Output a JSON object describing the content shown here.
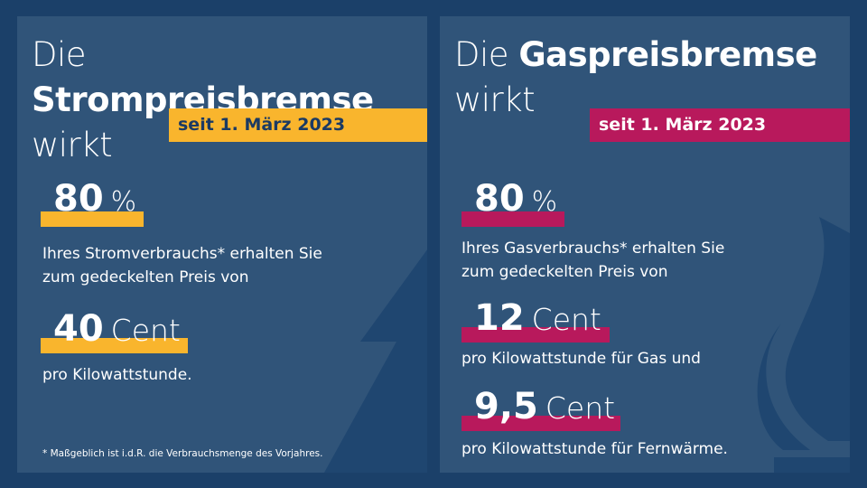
{
  "strom": {
    "title_prefix": "Die",
    "title_bold": "Strompreisbremse",
    "title_line2": "wirkt",
    "badge": "seit 1. März 2023",
    "share_value": "80",
    "share_unit": "%",
    "share_text_1": "Ihres Stromverbrauchs* erhalten Sie",
    "share_text_2": "zum gedeckelten Preis von",
    "price_value": "40",
    "price_unit": "Cent",
    "price_text": "pro Kilowattstunde.",
    "footnote": "* Maßgeblich ist i.d.R. die Verbrauchsmenge des Vorjahres.",
    "accent": "#f9b52d",
    "icon": "lightning-bolt-icon"
  },
  "gas": {
    "title_prefix": "Die",
    "title_bold": "Gaspreisbremse",
    "title_line2": "wirkt",
    "badge": "seit 1. März 2023",
    "share_value": "80",
    "share_unit": "%",
    "share_text_1": "Ihres Gasverbrauchs* erhalten Sie",
    "share_text_2": "zum gedeckelten Preis von",
    "price1_value": "12",
    "price1_unit": "Cent",
    "price1_text": "pro Kilowattstunde für Gas und",
    "price2_value": "9,5",
    "price2_unit": "Cent",
    "price2_text": "pro Kilowattstunde für Fernwärme.",
    "accent": "#b8195c",
    "icon": "gas-flame-icon"
  }
}
